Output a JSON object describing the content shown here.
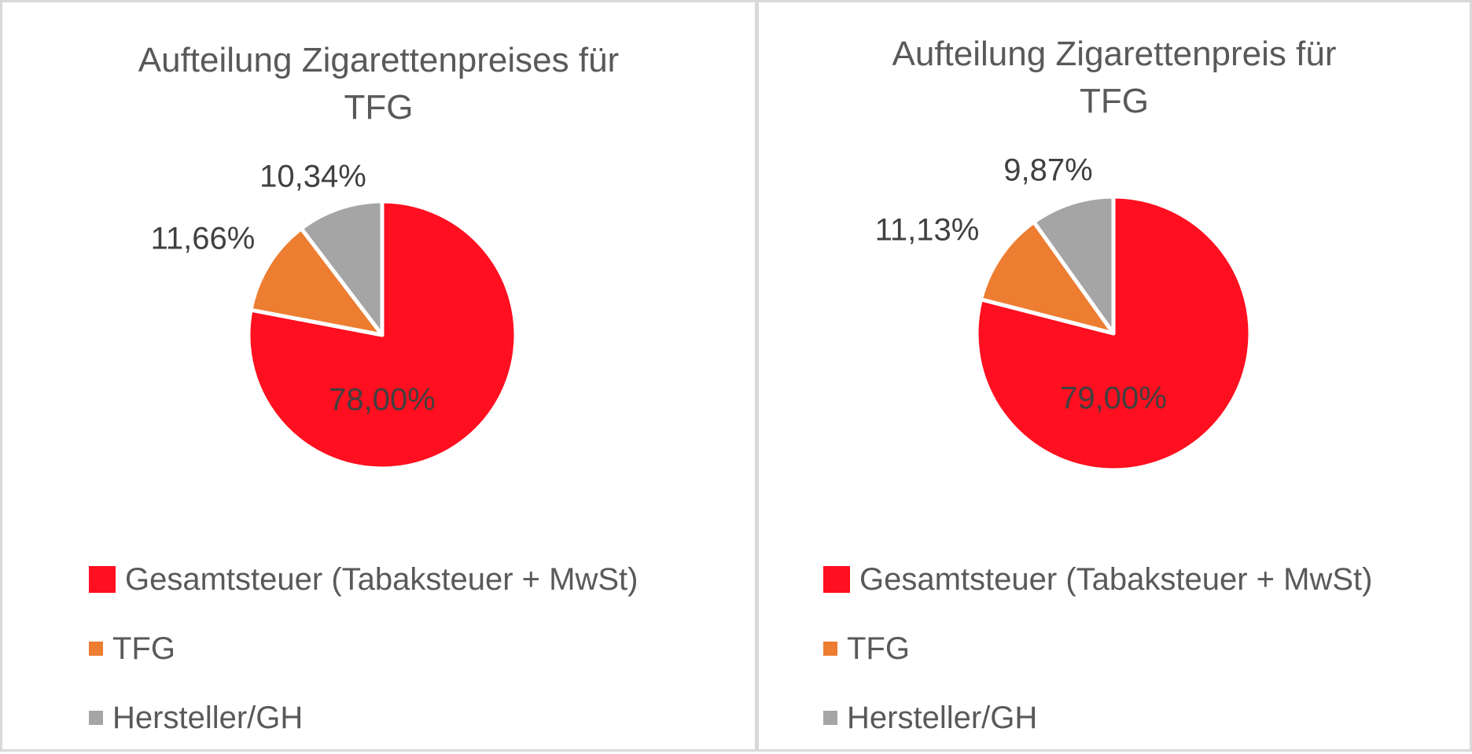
{
  "chart_data": [
    {
      "type": "pie",
      "title": "Aufteilung Zigarettenpreises für TFG",
      "title_lines": [
        "Aufteilung Zigarettenpreises für",
        "TFG"
      ],
      "categories": [
        "Gesamtsteuer (Tabaksteuer + MwSt)",
        "TFG",
        "Hersteller/GH"
      ],
      "values": [
        78.0,
        11.66,
        10.34
      ],
      "data_labels": [
        "78,00%",
        "11,66%",
        "10,34%"
      ],
      "colors": [
        "#ff0f1f",
        "#ed7d31",
        "#a5a5a5"
      ],
      "legend_position": "bottom"
    },
    {
      "type": "pie",
      "title": "Aufteilung Zigarettenpreis für TFG",
      "title_lines": [
        "Aufteilung Zigarettenpreis für",
        "TFG"
      ],
      "categories": [
        "Gesamtsteuer (Tabaksteuer + MwSt)",
        "TFG",
        "Hersteller/GH"
      ],
      "values": [
        79.0,
        11.13,
        9.87
      ],
      "data_labels": [
        "79,00%",
        "11,13%",
        "9,87%"
      ],
      "colors": [
        "#ff0f1f",
        "#ed7d31",
        "#a5a5a5"
      ],
      "legend_position": "bottom"
    }
  ]
}
